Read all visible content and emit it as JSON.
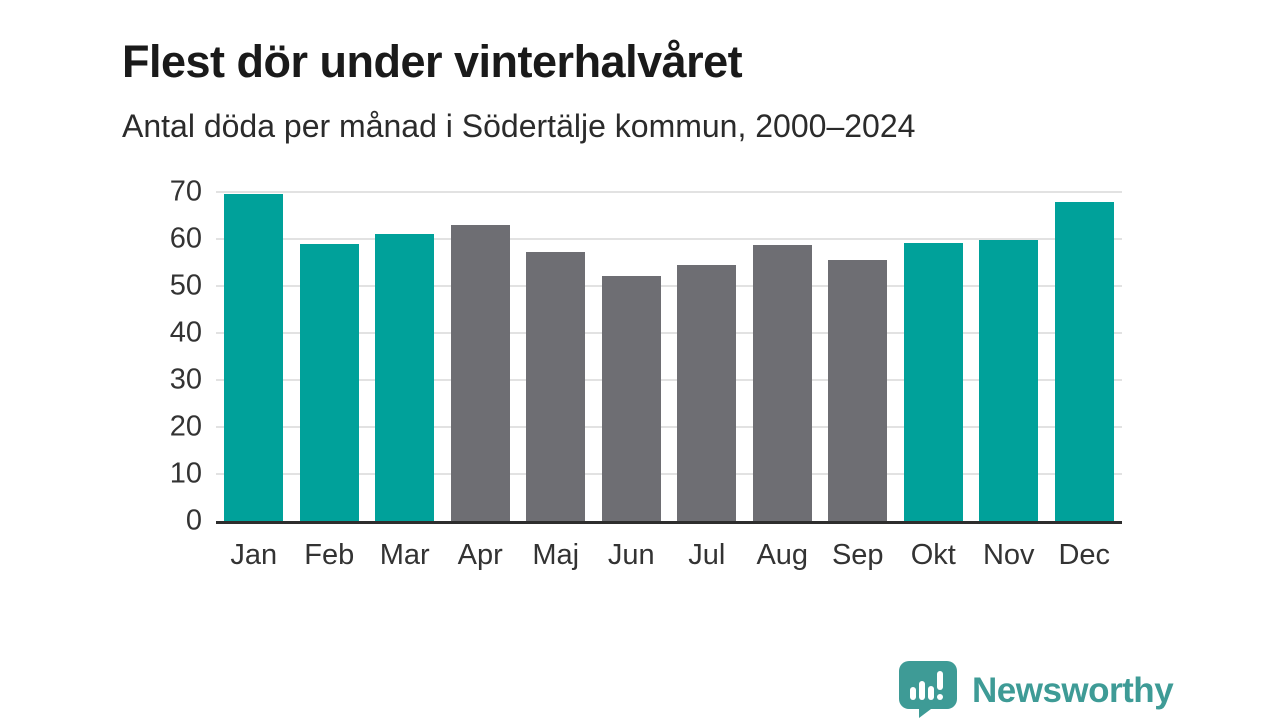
{
  "header": {
    "title": "Flest dör under vinterhalvåret",
    "subtitle": "Antal döda per månad i Södertälje kommun, 2000–2024"
  },
  "chart_data": {
    "type": "bar",
    "title": "Flest dör under vinterhalvåret",
    "subtitle": "Antal döda per månad i Södertälje kommun, 2000–2024",
    "categories": [
      "Jan",
      "Feb",
      "Mar",
      "Apr",
      "Maj",
      "Jun",
      "Jul",
      "Aug",
      "Sep",
      "Okt",
      "Nov",
      "Dec"
    ],
    "values": [
      69.5,
      59.0,
      61.1,
      62.9,
      57.3,
      52.2,
      54.5,
      58.8,
      55.5,
      59.1,
      59.8,
      67.8
    ],
    "bar_colors": [
      "#00a19a",
      "#00a19a",
      "#00a19a",
      "#6e6e73",
      "#6e6e73",
      "#6e6e73",
      "#6e6e73",
      "#6e6e73",
      "#6e6e73",
      "#00a19a",
      "#00a19a",
      "#00a19a"
    ],
    "xlabel": "",
    "ylabel": "",
    "ylim": [
      0,
      70
    ],
    "yticks": [
      0,
      10,
      20,
      30,
      40,
      50,
      60,
      70
    ],
    "grid": "horizontal",
    "legend": "none"
  },
  "colors": {
    "winter_bar": "#00a19a",
    "summer_bar": "#6e6e73",
    "axis_line": "#2d2d2d",
    "gridline": "#e2e2e2",
    "tick_label": "#333333",
    "title_text": "#1a1a1a",
    "subtitle_text": "#2b2b2b",
    "logo": "#3e9b96"
  },
  "branding": {
    "logo_text": "Newsworthy"
  }
}
